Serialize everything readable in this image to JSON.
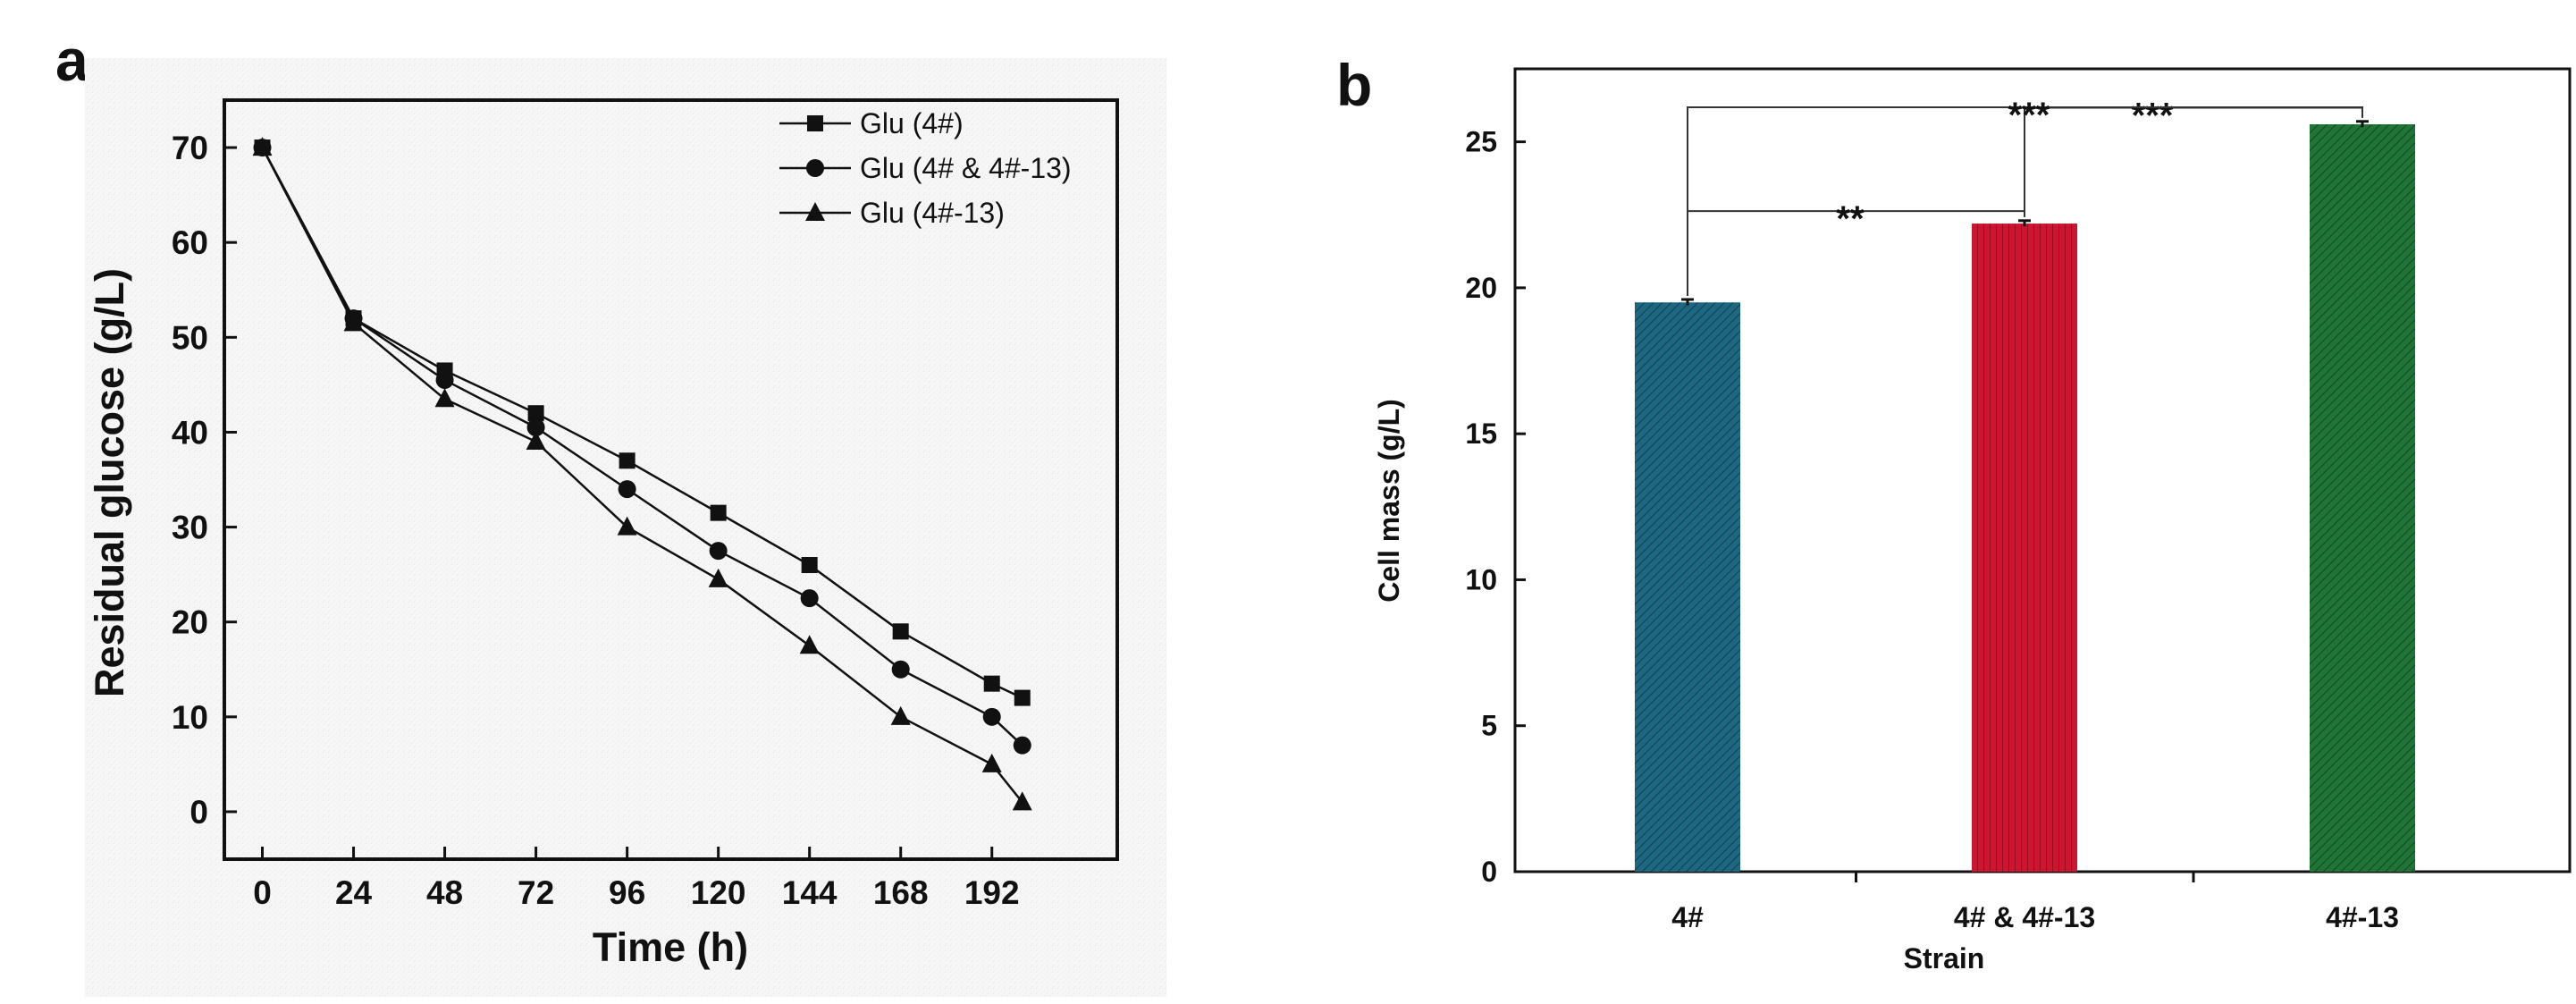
{
  "panels": {
    "a": "a",
    "b": "b"
  },
  "chart_data": [
    {
      "type": "line",
      "xlabel": "Time (h)",
      "ylabel": "Residual glucose (g/L)",
      "xlim": [
        -10,
        225
      ],
      "ylim": [
        -5,
        75
      ],
      "xticks": [
        0,
        24,
        48,
        72,
        96,
        120,
        144,
        168,
        192
      ],
      "yticks": [
        0,
        10,
        20,
        30,
        40,
        50,
        60,
        70
      ],
      "legend_position": "top-right",
      "series": [
        {
          "name": "Glu (4#)",
          "marker": "square",
          "x": [
            0,
            24,
            48,
            72,
            96,
            120,
            144,
            168,
            192,
            200
          ],
          "y": [
            70,
            52,
            46.5,
            42,
            37,
            31.5,
            26,
            19,
            13.5,
            12
          ]
        },
        {
          "name": "Glu (4# & 4#-13)",
          "marker": "circle",
          "x": [
            0,
            24,
            48,
            72,
            96,
            120,
            144,
            168,
            192,
            200
          ],
          "y": [
            70,
            52,
            45.5,
            40.5,
            34,
            27.5,
            22.5,
            15,
            10,
            7
          ]
        },
        {
          "name": "Glu (4#-13)",
          "marker": "triangle",
          "x": [
            0,
            24,
            48,
            72,
            96,
            120,
            144,
            168,
            192,
            200
          ],
          "y": [
            70,
            51.5,
            43.5,
            39,
            30,
            24.5,
            17.5,
            10,
            5,
            1
          ]
        }
      ]
    },
    {
      "type": "bar",
      "xlabel": "Strain",
      "ylabel": "Cell mass (g/L)",
      "ylim": [
        0,
        27.5
      ],
      "yticks": [
        0,
        5,
        10,
        15,
        20,
        25
      ],
      "categories": [
        "4#",
        "4# & 4#-13",
        "4#-13"
      ],
      "values": [
        19.5,
        22.2,
        25.6
      ],
      "errors": [
        0.1,
        0.1,
        0.1
      ],
      "colors": [
        "#1d6880",
        "#cc1530",
        "#1f7436"
      ],
      "significance": [
        {
          "from": 0,
          "to": 1,
          "label": "**"
        },
        {
          "from": 1,
          "to": 2,
          "label": "***"
        },
        {
          "from": 0,
          "to": 2,
          "label": "***"
        }
      ]
    }
  ]
}
